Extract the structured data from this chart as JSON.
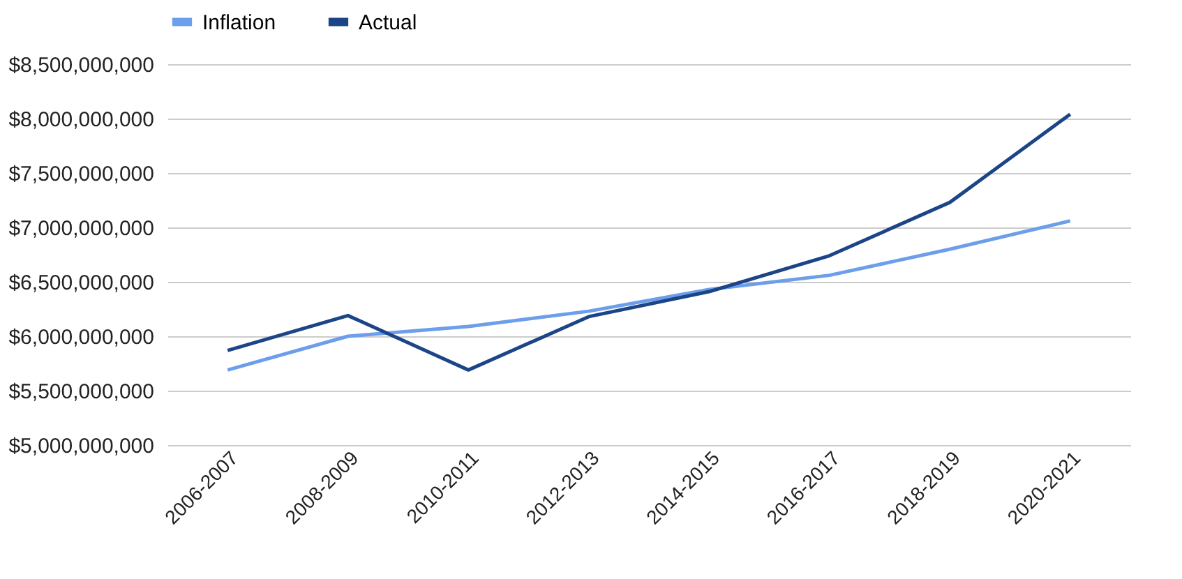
{
  "chart_data": {
    "type": "line",
    "categories": [
      "2006-2007",
      "2008-2009",
      "2010-2011",
      "2012-2013",
      "2014-2015",
      "2016-2017",
      "2018-2019",
      "2020-2021"
    ],
    "series": [
      {
        "name": "Inflation",
        "color": "#6d9eeb",
        "values": [
          5690000000,
          6000000000,
          6090000000,
          6230000000,
          6430000000,
          6560000000,
          6800000000,
          7060000000
        ]
      },
      {
        "name": "Actual",
        "color": "#1c4587",
        "values": [
          5870000000,
          6190000000,
          5690000000,
          6180000000,
          6410000000,
          6740000000,
          7230000000,
          8040000000
        ]
      }
    ],
    "ylim": [
      5000000000,
      8500000000
    ],
    "yticks": [
      {
        "value": 5000000000,
        "label": "$5,000,000,000"
      },
      {
        "value": 5500000000,
        "label": "$5,500,000,000"
      },
      {
        "value": 6000000000,
        "label": "$6,000,000,000"
      },
      {
        "value": 6500000000,
        "label": "$6,500,000,000"
      },
      {
        "value": 7000000000,
        "label": "$7,000,000,000"
      },
      {
        "value": 7500000000,
        "label": "$7,500,000,000"
      },
      {
        "value": 8000000000,
        "label": "$8,000,000,000"
      },
      {
        "value": 8500000000,
        "label": "$8,500,000,000"
      }
    ],
    "grid": "y",
    "legend": "top",
    "marker": "none",
    "line_style": "solid"
  }
}
